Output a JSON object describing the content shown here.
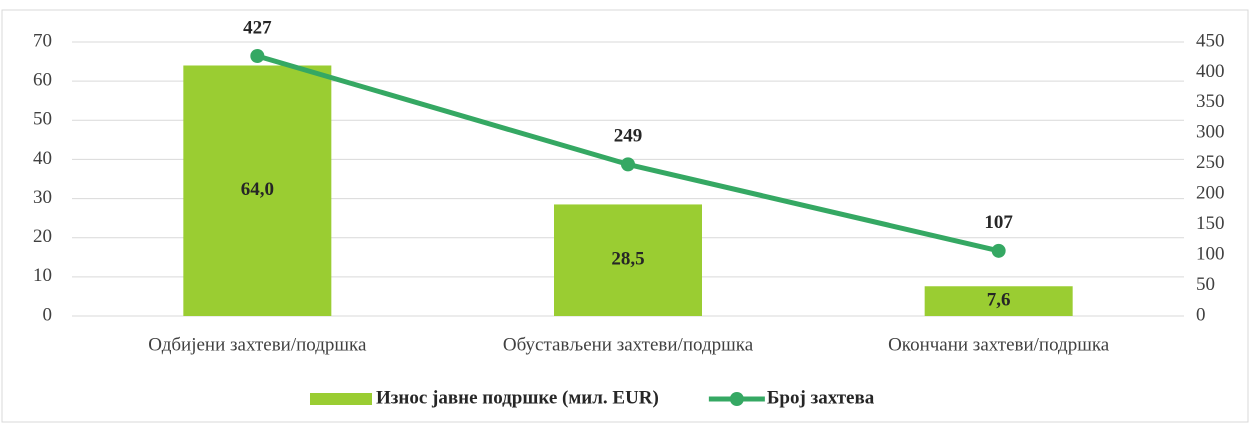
{
  "chart_data": {
    "type": "combo",
    "categories": [
      "Одбијени захтеви/подршка",
      "Обустављени захтеви/подршка",
      "Окончани захтеви/подршка"
    ],
    "series": [
      {
        "name": "Износ јавне подршке (мил. EUR)",
        "type": "bar",
        "color": "#9acd32",
        "values": [
          64.0,
          28.5,
          7.6
        ],
        "value_labels": [
          "64,0",
          "28,5",
          "7,6"
        ]
      },
      {
        "name": "Број захтева",
        "type": "line",
        "axis": "y2",
        "color": "#35a863",
        "values": [
          427,
          249,
          107
        ]
      }
    ],
    "ylim": [
      0,
      70
    ],
    "yticks": [
      0,
      10,
      20,
      30,
      40,
      50,
      60,
      70
    ],
    "y2lim": [
      0,
      450
    ],
    "y2ticks": [
      0,
      50,
      100,
      150,
      200,
      250,
      300,
      350,
      400,
      450
    ],
    "grid": true,
    "legend": "bottom"
  }
}
